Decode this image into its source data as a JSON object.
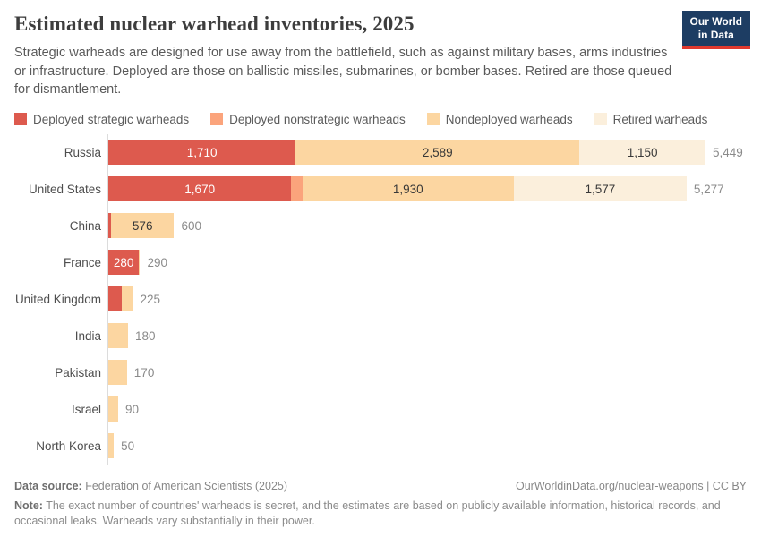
{
  "header": {
    "title": "Estimated nuclear warhead inventories, 2025",
    "subtitle": "Strategic warheads are designed for use away from the battlefield, such as against military bases, arms industries or infrastructure. Deployed are those on ballistic missiles, submarines, or bomber bases. Retired are those queued for dismantlement.",
    "logo_line1": "Our World",
    "logo_line2": "in Data"
  },
  "colors": {
    "deployed_strategic": "#dd5a4e",
    "deployed_nonstrategic": "#fba47c",
    "nondeployed": "#fcd6a1",
    "retired": "#fbefdc",
    "axis_line": "#dcdcdc",
    "logo_bg": "#1d3d63",
    "logo_stripe": "#e0392e"
  },
  "chart_data": {
    "type": "bar",
    "orientation": "horizontal",
    "stacked": true,
    "title": "Estimated nuclear warhead inventories, 2025",
    "legend_position": "top",
    "grid": false,
    "x_axis_visible": false,
    "x_max": 5449,
    "categories": [
      "Russia",
      "United States",
      "China",
      "France",
      "United Kingdom",
      "India",
      "Pakistan",
      "Israel",
      "North Korea"
    ],
    "series": [
      {
        "name": "Deployed strategic warheads",
        "color": "#dd5a4e",
        "label_color": "#ffffff",
        "values": [
          1710,
          1670,
          24,
          280,
          120,
          0,
          0,
          0,
          0
        ]
      },
      {
        "name": "Deployed nonstrategic warheads",
        "color": "#fba47c",
        "label_color": "#383838",
        "values": [
          0,
          100,
          0,
          0,
          0,
          0,
          0,
          0,
          0
        ]
      },
      {
        "name": "Nondeployed warheads",
        "color": "#fcd6a1",
        "label_color": "#383838",
        "values": [
          2589,
          1930,
          576,
          10,
          105,
          180,
          170,
          90,
          50
        ]
      },
      {
        "name": "Retired warheads",
        "color": "#fbefdc",
        "label_color": "#383838",
        "values": [
          1150,
          1577,
          0,
          0,
          0,
          0,
          0,
          0,
          0
        ]
      }
    ],
    "totals": [
      5449,
      5277,
      600,
      290,
      225,
      180,
      170,
      90,
      50
    ],
    "visible_segment_labels": [
      "1,710",
      "2,589",
      "1,150",
      "1,670",
      "1,930",
      "1,577",
      "576",
      "280"
    ],
    "visible_total_labels": [
      "5,449",
      "5,277",
      "600",
      "290",
      "225",
      "180",
      "170",
      "90",
      "50"
    ]
  },
  "footer": {
    "source_label": "Data source:",
    "source_text": " Federation of American Scientists (2025)",
    "link_text": "OurWorldinData.org/nuclear-weapons | CC BY",
    "note_label": "Note:",
    "note_text": " The exact number of countries' warheads is secret, and the estimates are based on publicly available information, historical records, and occasional leaks. Warheads vary substantially in their power."
  }
}
